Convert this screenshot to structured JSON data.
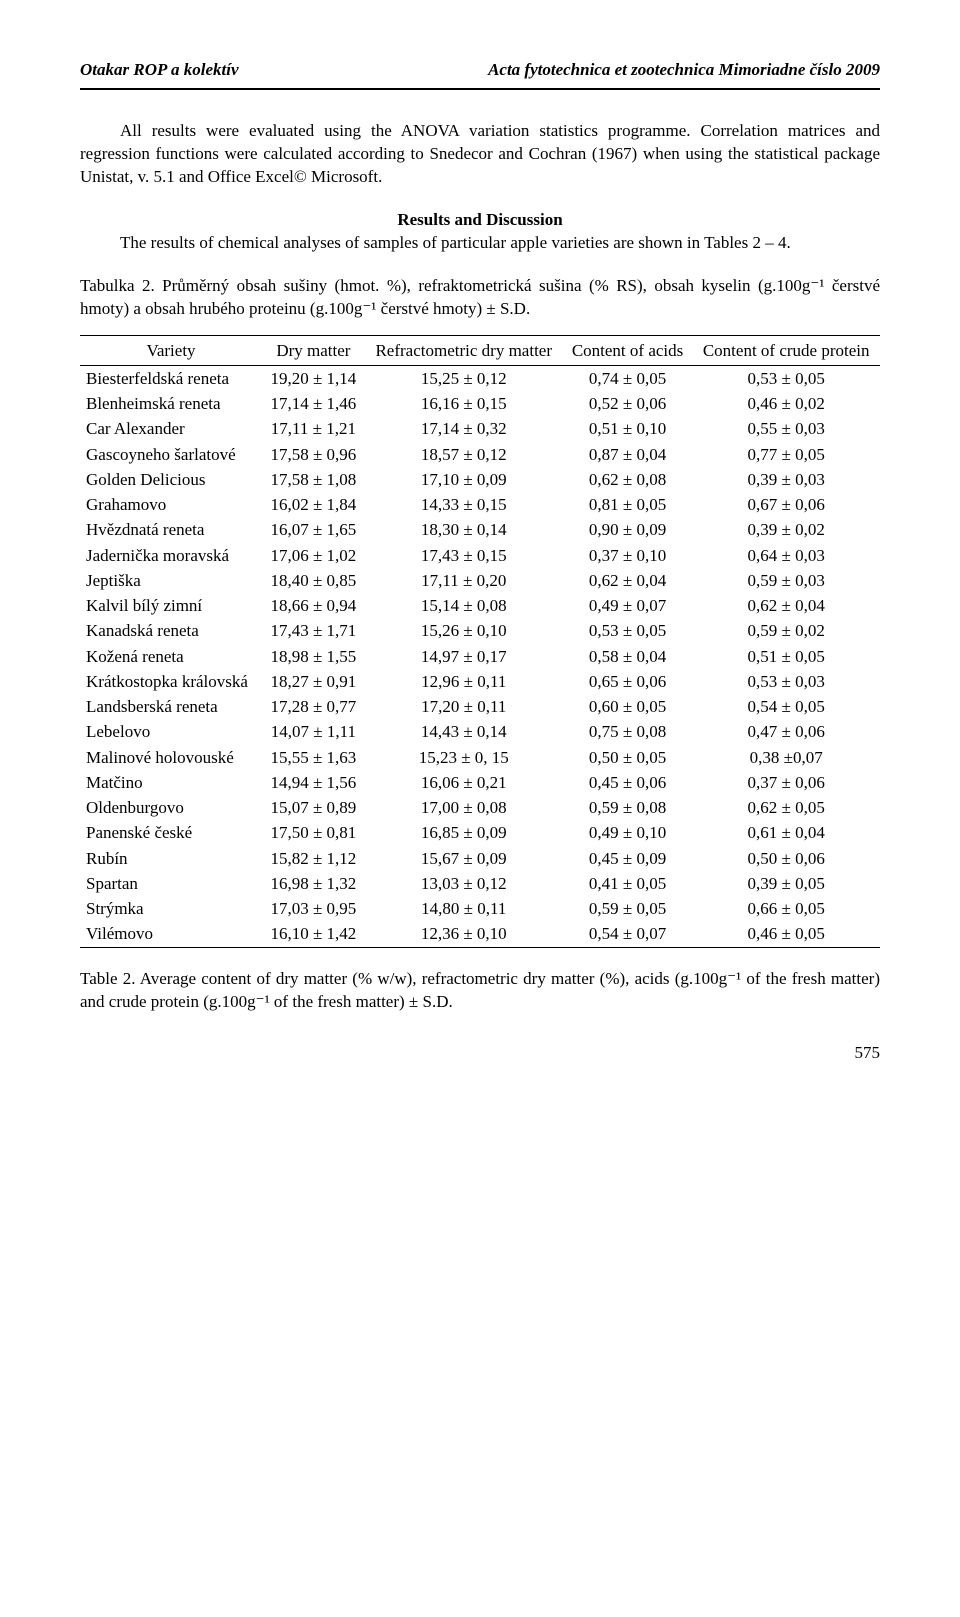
{
  "header": {
    "left": "Otakar ROP a kolektív",
    "right": "Acta fytotechnica et zootechnica Mimoriadne číslo 2009"
  },
  "para1": "All results were evaluated using the ANOVA variation statistics programme. Correlation matrices and regression functions were calculated according to Snedecor and Cochran (1967) when using the statistical package Unistat, v. 5.1 and Office Excel© Microsoft.",
  "section_title": "Results and Discussion",
  "para2": "The results of chemical analyses of samples of particular apple varieties are shown in Tables 2 – 4.",
  "caption_top": "Tabulka 2. Průměrný obsah sušiny (hmot. %), refraktometrická sušina (% RS), obsah kyselin (g.100g⁻¹ čerstvé hmoty) a obsah hrubého proteinu (g.100g⁻¹ čerstvé hmoty) ± S.D.",
  "table": {
    "columns": [
      "Variety",
      "Dry matter",
      "Refractometric dry matter",
      "Content of acids",
      "Content of crude protein"
    ],
    "col_widths": [
      "170px",
      "auto",
      "auto",
      "auto",
      "auto"
    ],
    "rows": [
      [
        "Biesterfeldská reneta",
        "19,20 ± 1,14",
        "15,25 ± 0,12",
        "0,74 ± 0,05",
        "0,53 ± 0,05"
      ],
      [
        "Blenheimská reneta",
        "17,14 ± 1,46",
        "16,16 ± 0,15",
        "0,52 ± 0,06",
        "0,46 ± 0,02"
      ],
      [
        "Car Alexander",
        "17,11 ± 1,21",
        "17,14 ± 0,32",
        "0,51 ± 0,10",
        "0,55 ± 0,03"
      ],
      [
        "Gascoyneho šarlatové",
        "17,58 ± 0,96",
        "18,57  ± 0,12",
        "0,87 ± 0,04",
        "0,77 ± 0,05"
      ],
      [
        "Golden Delicious",
        "17,58 ± 1,08",
        "17,10 ± 0,09",
        "0,62 ± 0,08",
        "0,39 ± 0,03"
      ],
      [
        "Grahamovo",
        "16,02 ± 1,84",
        "14,33 ± 0,15",
        "0,81 ± 0,05",
        "0,67 ± 0,06"
      ],
      [
        "Hvězdnatá reneta",
        "16,07 ± 1,65",
        "18,30 ± 0,14",
        "0,90 ± 0,09",
        "0,39 ± 0,02"
      ],
      [
        "Jadernička moravská",
        "17,06 ± 1,02",
        "17,43 ± 0,15",
        "0,37 ± 0,10",
        "0,64 ± 0,03"
      ],
      [
        "Jeptiška",
        "18,40 ± 0,85",
        "17,11 ± 0,20",
        "0,62 ± 0,04",
        "0,59 ± 0,03"
      ],
      [
        "Kalvil bílý zimní",
        "18,66  ± 0,94",
        "15,14 ± 0,08",
        "0,49 ± 0,07",
        "0,62 ± 0,04"
      ],
      [
        "Kanadská reneta",
        "17,43 ± 1,71",
        "15,26 ± 0,10",
        "0,53 ± 0,05",
        "0,59 ± 0,02"
      ],
      [
        "Kožená reneta",
        "18,98 ± 1,55",
        "14,97 ± 0,17",
        "0,58 ± 0,04",
        "0,51 ± 0,05"
      ],
      [
        "Krátkostopka královská",
        "18,27 ± 0,91",
        "12,96 ± 0,11",
        "0,65 ± 0,06",
        "0,53 ± 0,03"
      ],
      [
        "Landsberská reneta",
        "17,28 ± 0,77",
        "17,20 ± 0,11",
        "0,60 ± 0,05",
        "0,54 ± 0,05"
      ],
      [
        "Lebelovo",
        "14,07 ± 1,11",
        "14,43 ± 0,14",
        "0,75 ± 0,08",
        "0,47 ± 0,06"
      ],
      [
        "Malinové holovouské",
        "15,55 ± 1,63",
        "15,23 ± 0, 15",
        "0,50 ± 0,05",
        "0,38 ±0,07"
      ],
      [
        "Matčino",
        "14,94 ± 1,56",
        "16,06 ± 0,21",
        "0,45 ± 0,06",
        "0,37 ± 0,06"
      ],
      [
        "Oldenburgovo",
        "15,07 ± 0,89",
        "17,00 ± 0,08",
        "0,59 ± 0,08",
        "0,62 ± 0,05"
      ],
      [
        "Panenské české",
        "17,50 ± 0,81",
        "16,85 ± 0,09",
        "0,49 ± 0,10",
        "0,61 ± 0,04"
      ],
      [
        "Rubín",
        "15,82 ± 1,12",
        "15,67 ± 0,09",
        "0,45 ± 0,09",
        "0,50 ± 0,06"
      ],
      [
        "Spartan",
        "16,98 ± 1,32",
        "13,03 ± 0,12",
        "0,41 ± 0,05",
        "0,39 ± 0,05"
      ],
      [
        "Strýmka",
        "17,03 ± 0,95",
        "14,80 ± 0,11",
        "0,59 ± 0,05",
        "0,66 ± 0,05"
      ],
      [
        "Vilémovo",
        "16,10 ± 1,42",
        "12,36 ± 0,10",
        "0,54 ± 0,07",
        "0,46 ± 0,05"
      ]
    ]
  },
  "caption_bottom": "Table 2. Average content of dry matter (% w/w), refractometric dry matter (%), acids (g.100g⁻¹ of the fresh matter) and crude protein (g.100g⁻¹ of the fresh matter) ± S.D.",
  "page_number": "575",
  "styling": {
    "font_family": "Times New Roman",
    "body_fontsize_pt": 12,
    "text_color": "#000000",
    "background_color": "#ffffff",
    "rule_color": "#000000"
  }
}
